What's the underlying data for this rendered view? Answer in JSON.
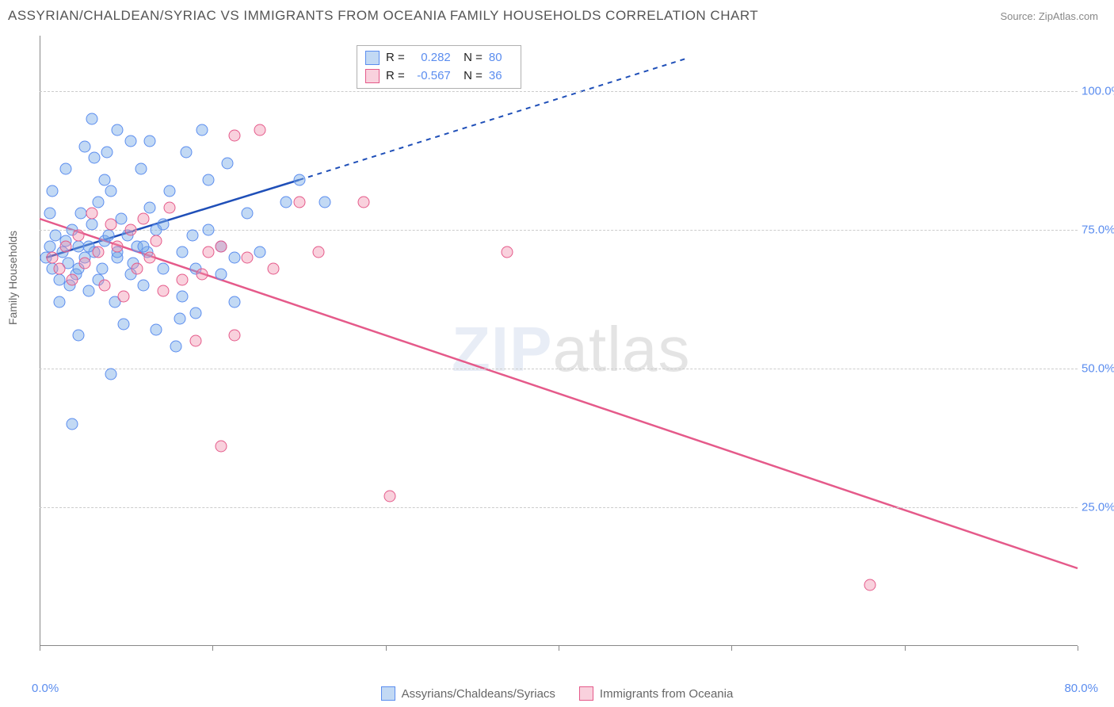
{
  "header": {
    "title": "ASSYRIAN/CHALDEAN/SYRIAC VS IMMIGRANTS FROM OCEANIA FAMILY HOUSEHOLDS CORRELATION CHART",
    "source": "Source: ZipAtlas.com"
  },
  "chart": {
    "type": "scatter",
    "y_axis_label": "Family Households",
    "background_color": "#ffffff",
    "grid_color": "#cccccc",
    "axis_color": "#888888",
    "tick_label_color": "#5b8def",
    "xlim": [
      0,
      80
    ],
    "ylim": [
      0,
      110
    ],
    "x_ticks_major": [
      0,
      13.33,
      26.67,
      40,
      53.33,
      66.67,
      80
    ],
    "x_tick_labels": [
      {
        "pos": 0,
        "text": "0.0%"
      },
      {
        "pos": 80,
        "text": "80.0%"
      }
    ],
    "y_ticks": [
      {
        "pos": 25,
        "text": "25.0%"
      },
      {
        "pos": 50,
        "text": "50.0%"
      },
      {
        "pos": 75,
        "text": "75.0%"
      },
      {
        "pos": 100,
        "text": "100.0%"
      }
    ],
    "watermark": {
      "text_bold": "ZIP",
      "text_light": "atlas"
    },
    "series": [
      {
        "key": "assyrians",
        "label": "Assyrians/Chaldeans/Syriacs",
        "color_fill": "rgba(120,170,230,0.45)",
        "color_stroke": "#5b8def",
        "marker_size": 15,
        "R": "0.282",
        "N": "80",
        "trend": {
          "color": "#1f4fb8",
          "width": 2.5,
          "x1": 0.5,
          "y1": 70,
          "x2": 20,
          "y2": 84,
          "dash_x2": 50,
          "dash_y2": 106
        },
        "points": [
          [
            0.5,
            70
          ],
          [
            0.8,
            72
          ],
          [
            1,
            68
          ],
          [
            1.2,
            74
          ],
          [
            1.5,
            66
          ],
          [
            1.8,
            71
          ],
          [
            2,
            73
          ],
          [
            2.2,
            69
          ],
          [
            2.5,
            75
          ],
          [
            2.8,
            67
          ],
          [
            3,
            72
          ],
          [
            3.2,
            78
          ],
          [
            3.5,
            70
          ],
          [
            3.8,
            64
          ],
          [
            4,
            76
          ],
          [
            4.2,
            71
          ],
          [
            4.5,
            80
          ],
          [
            4.8,
            68
          ],
          [
            5,
            73
          ],
          [
            5.2,
            89
          ],
          [
            5,
            84
          ],
          [
            5.5,
            82
          ],
          [
            5.8,
            62
          ],
          [
            6,
            70
          ],
          [
            6.3,
            77
          ],
          [
            6.5,
            58
          ],
          [
            6.8,
            74
          ],
          [
            7,
            91
          ],
          [
            7.2,
            69
          ],
          [
            7.5,
            72
          ],
          [
            7.8,
            86
          ],
          [
            8,
            65
          ],
          [
            8.3,
            71
          ],
          [
            8.5,
            79
          ],
          [
            9,
            75
          ],
          [
            9.5,
            68
          ],
          [
            10,
            82
          ],
          [
            10.5,
            54
          ],
          [
            11,
            63
          ],
          [
            11.3,
            89
          ],
          [
            11.8,
            74
          ],
          [
            12,
            60
          ],
          [
            12.5,
            93
          ],
          [
            13,
            84
          ],
          [
            14,
            72
          ],
          [
            14.5,
            87
          ],
          [
            15,
            62
          ],
          [
            4,
            95
          ],
          [
            6,
            93
          ],
          [
            8.5,
            91
          ],
          [
            2.5,
            40
          ],
          [
            5.5,
            49
          ],
          [
            3,
            56
          ],
          [
            9,
            57
          ],
          [
            10.8,
            59
          ],
          [
            1.5,
            62
          ],
          [
            3,
            68
          ],
          [
            4.5,
            66
          ],
          [
            6,
            71
          ],
          [
            7,
            67
          ],
          [
            8,
            72
          ],
          [
            9.5,
            76
          ],
          [
            11,
            71
          ],
          [
            12,
            68
          ],
          [
            13,
            75
          ],
          [
            14,
            67
          ],
          [
            15,
            70
          ],
          [
            16,
            78
          ],
          [
            17,
            71
          ],
          [
            19,
            80
          ],
          [
            20,
            84
          ],
          [
            22,
            80
          ],
          [
            3.5,
            90
          ],
          [
            4.2,
            88
          ],
          [
            2,
            86
          ],
          [
            1,
            82
          ],
          [
            0.8,
            78
          ],
          [
            2.3,
            65
          ],
          [
            3.8,
            72
          ],
          [
            5.3,
            74
          ]
        ]
      },
      {
        "key": "oceania",
        "label": "Immigants from Oceania",
        "label_display": "Immigrants from Oceania",
        "color_fill": "rgba(240,140,170,0.40)",
        "color_stroke": "#e55a8a",
        "marker_size": 15,
        "R": "-0.567",
        "N": "36",
        "trend": {
          "color": "#e55a8a",
          "width": 2.5,
          "x1": 0,
          "y1": 77,
          "x2": 80,
          "y2": 14
        },
        "points": [
          [
            1,
            70
          ],
          [
            1.5,
            68
          ],
          [
            2,
            72
          ],
          [
            2.5,
            66
          ],
          [
            3,
            74
          ],
          [
            3.5,
            69
          ],
          [
            4,
            78
          ],
          [
            4.5,
            71
          ],
          [
            5,
            65
          ],
          [
            5.5,
            76
          ],
          [
            6,
            72
          ],
          [
            6.5,
            63
          ],
          [
            7,
            75
          ],
          [
            7.5,
            68
          ],
          [
            8,
            77
          ],
          [
            8.5,
            70
          ],
          [
            9,
            73
          ],
          [
            9.5,
            64
          ],
          [
            10,
            79
          ],
          [
            11,
            66
          ],
          [
            12,
            55
          ],
          [
            12.5,
            67
          ],
          [
            13,
            71
          ],
          [
            14,
            72
          ],
          [
            15,
            56
          ],
          [
            15,
            92
          ],
          [
            16,
            70
          ],
          [
            17,
            93
          ],
          [
            18,
            68
          ],
          [
            20,
            80
          ],
          [
            21.5,
            71
          ],
          [
            25,
            80
          ],
          [
            14,
            36
          ],
          [
            27,
            27
          ],
          [
            36,
            71
          ],
          [
            64,
            11
          ]
        ]
      }
    ]
  },
  "legend_bottom": {
    "items": [
      {
        "swatch_fill": "rgba(120,170,230,0.45)",
        "swatch_stroke": "#5b8def",
        "label": "Assyrians/Chaldeans/Syriacs"
      },
      {
        "swatch_fill": "rgba(240,140,170,0.40)",
        "swatch_stroke": "#e55a8a",
        "label": "Immigrants from Oceania"
      }
    ]
  }
}
